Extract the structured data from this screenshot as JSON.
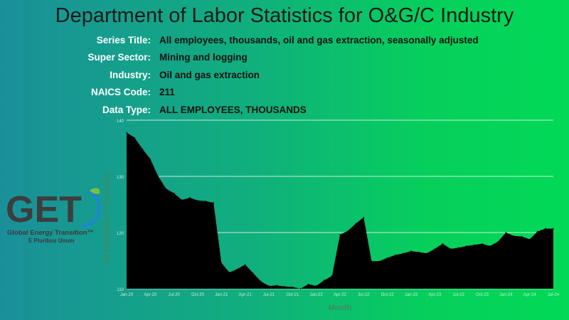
{
  "header": {
    "title": "Department of Labor Statistics for O&G/C Industry"
  },
  "info": [
    {
      "key": "Series Title:",
      "value": "All employees, thousands, oil and gas extraction, seasonally adjusted"
    },
    {
      "key": "Super Sector:",
      "value": "Mining and logging"
    },
    {
      "key": "Industry:",
      "value": "Oil and gas extraction"
    },
    {
      "key": "NAICS Code:",
      "value": "211"
    },
    {
      "key": "Data Type:",
      "value": "ALL EMPLOYEES, THOUSANDS"
    }
  ],
  "logo": {
    "text": "GET",
    "subtitle": "Global Energy Transition™",
    "tagline": "E Pluribus Unum",
    "colors": {
      "letters": "#3d3d3d",
      "swoosh_green": "#7ac142",
      "swoosh_blue": "#1e88c8"
    }
  },
  "colors": {
    "area_fill": "#000000",
    "gridline": "#e8f7ee",
    "axis_title": "#3f8a66",
    "tick_label": "#cfe9d8"
  },
  "chart_data": {
    "type": "area",
    "xlabel": "Month",
    "ylabel": "All Employees, Thousands",
    "ylim": [
      110,
      140
    ],
    "yticks": [
      110,
      120,
      130,
      140
    ],
    "ytick_labels": [
      "110",
      "120",
      "130",
      "140"
    ],
    "grid": true,
    "xtick_labels": [
      "Jan-20",
      "Apr-20",
      "Jul-20",
      "Oct-20",
      "Jan-21",
      "Apr-21",
      "Jul-21",
      "Oct-21",
      "Jan-22",
      "Apr-22",
      "Jul-22",
      "Oct-22",
      "Jan-23",
      "Apr-23",
      "Jul-23",
      "Oct-23",
      "Jan-24",
      "Apr-24",
      "Jul-24"
    ],
    "x": [
      "Jan-20",
      "Feb-20",
      "Mar-20",
      "Apr-20",
      "May-20",
      "Jun-20",
      "Jul-20",
      "Aug-20",
      "Sep-20",
      "Oct-20",
      "Nov-20",
      "Dec-20",
      "Jan-21",
      "Feb-21",
      "Mar-21",
      "Apr-21",
      "May-21",
      "Jun-21",
      "Jul-21",
      "Aug-21",
      "Sep-21",
      "Oct-21",
      "Nov-21",
      "Dec-21",
      "Jan-22",
      "Feb-22",
      "Mar-22",
      "Apr-22",
      "May-22",
      "Jun-22",
      "Jul-22",
      "Aug-22",
      "Sep-22",
      "Oct-22",
      "Nov-22",
      "Dec-22",
      "Jan-23",
      "Feb-23",
      "Mar-23",
      "Apr-23",
      "May-23",
      "Jun-23",
      "Jul-23",
      "Aug-23",
      "Sep-23",
      "Oct-23",
      "Nov-23",
      "Dec-23",
      "Jan-24",
      "Feb-24",
      "Mar-24",
      "Apr-24",
      "May-24",
      "Jun-24",
      "Jul-24"
    ],
    "values": [
      137.8,
      136.9,
      134.9,
      133.1,
      130.0,
      127.8,
      127.0,
      125.8,
      126.2,
      125.7,
      125.6,
      125.3,
      114.6,
      112.9,
      113.5,
      114.3,
      112.8,
      111.3,
      110.5,
      110.6,
      110.4,
      110.3,
      110.0,
      110.8,
      110.5,
      111.5,
      112.3,
      119.6,
      120.3,
      121.6,
      122.7,
      114.9,
      114.9,
      115.5,
      116.0,
      116.3,
      116.7,
      116.5,
      116.3,
      117.1,
      118.0,
      117.1,
      117.3,
      117.6,
      117.8,
      118.0,
      117.6,
      118.4,
      120.0,
      119.4,
      119.3,
      118.8,
      120.2,
      120.7,
      120.7
    ]
  }
}
